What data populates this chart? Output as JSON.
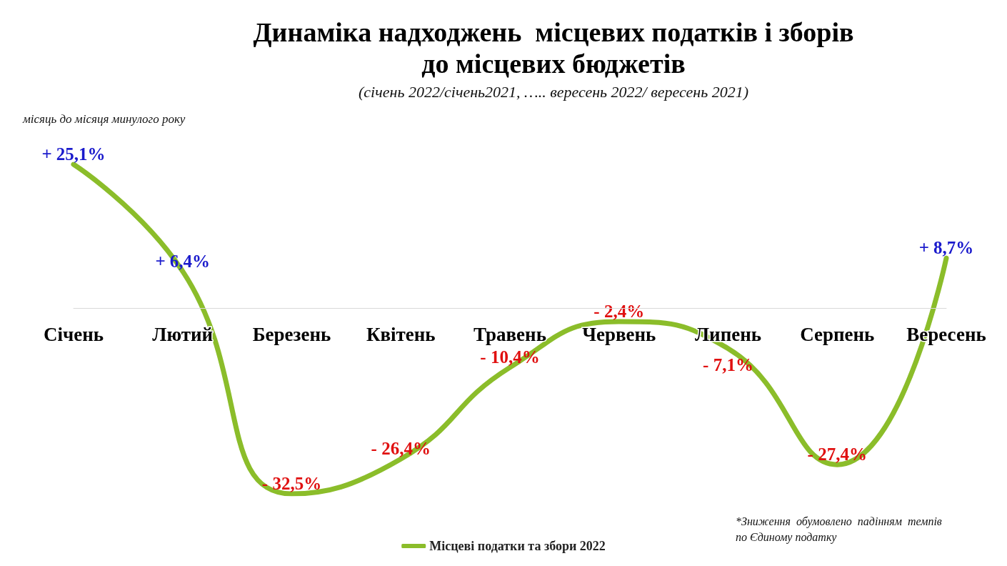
{
  "chart_data": {
    "type": "line",
    "title": "Динаміка надходжень  місцевих податків і зборів\nдо місцевих бюджетів",
    "subtitle": "(січень 2022/січень2021, ….. вересень 2022/ вересень 2021)",
    "categories": [
      "Січень",
      "Лютий",
      "Березень",
      "Квітень",
      "Травень",
      "Червень",
      "Липень",
      "Серпень",
      "Вересень"
    ],
    "series": [
      {
        "name": "Місцеві податки та збори 2022",
        "color": "#8bbd2a",
        "values": [
          25.1,
          6.4,
          -32.5,
          -26.4,
          -10.4,
          -2.4,
          -7.1,
          -27.4,
          8.7
        ],
        "value_labels": [
          "+ 25,1%",
          "+ 6,4%",
          "- 32,5%",
          "- 26,4%",
          "- 10,4%",
          "- 2,4%",
          "- 7,1%",
          "- 27,4%",
          "+ 8,7%"
        ]
      }
    ],
    "annotations": [
      "місяць до місяця минулого року",
      "*Зниження  обумовлено  падінням  темпів\nпо Єдиному податку"
    ],
    "marker": "none",
    "line_style": "solid",
    "legend": "bottom",
    "grid": false
  }
}
